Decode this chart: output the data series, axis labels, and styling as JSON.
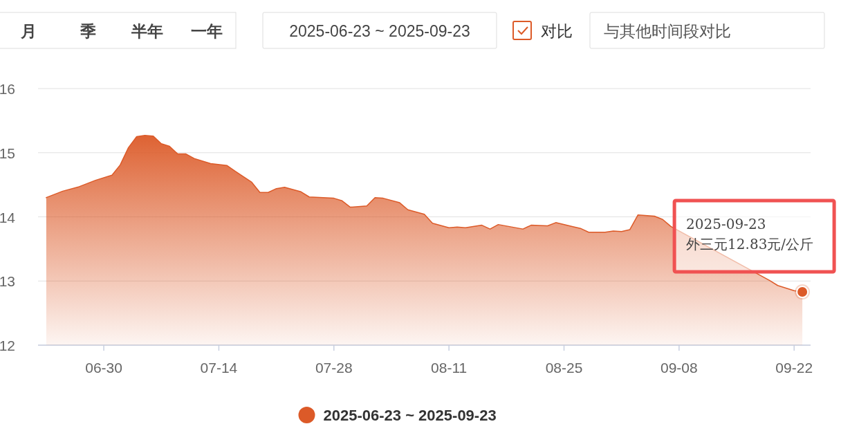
{
  "chart_data": {
    "type": "area",
    "legend": "bottom",
    "grid": "y",
    "line_style": "solid",
    "marker": "none",
    "x": [
      "2025-06-23",
      "2025-06-25",
      "2025-06-27",
      "2025-06-29",
      "2025-07-01",
      "2025-07-02",
      "2025-07-03",
      "2025-07-04",
      "2025-07-05",
      "2025-07-06",
      "2025-07-07",
      "2025-07-08",
      "2025-07-09",
      "2025-07-10",
      "2025-07-11",
      "2025-07-13",
      "2025-07-15",
      "2025-07-16",
      "2025-07-18",
      "2025-07-19",
      "2025-07-20",
      "2025-07-21",
      "2025-07-22",
      "2025-07-24",
      "2025-07-25",
      "2025-07-28",
      "2025-07-29",
      "2025-07-30",
      "2025-08-01",
      "2025-08-02",
      "2025-08-03",
      "2025-08-05",
      "2025-08-06",
      "2025-08-08",
      "2025-08-09",
      "2025-08-11",
      "2025-08-12",
      "2025-08-13",
      "2025-08-15",
      "2025-08-16",
      "2025-08-17",
      "2025-08-20",
      "2025-08-21",
      "2025-08-23",
      "2025-08-24",
      "2025-08-26",
      "2025-08-27",
      "2025-08-28",
      "2025-08-30",
      "2025-08-31",
      "2025-09-01",
      "2025-09-02",
      "2025-09-03",
      "2025-09-05",
      "2025-09-06",
      "2025-09-07",
      "2025-09-19",
      "2025-09-20",
      "2025-09-22",
      "2025-09-23"
    ],
    "series": [
      {
        "name": "2025-06-23 ~ 2025-09-23",
        "color": "#dc5a28",
        "values": [
          14.3,
          14.4,
          14.47,
          14.57,
          14.65,
          14.81,
          15.08,
          15.25,
          15.27,
          15.26,
          15.14,
          15.1,
          14.98,
          14.98,
          14.91,
          14.83,
          14.8,
          14.71,
          14.54,
          14.38,
          14.38,
          14.44,
          14.46,
          14.39,
          14.31,
          14.29,
          14.25,
          14.15,
          14.17,
          14.3,
          14.29,
          14.22,
          14.11,
          14.04,
          13.9,
          13.83,
          13.84,
          13.83,
          13.87,
          13.81,
          13.88,
          13.81,
          13.87,
          13.86,
          13.91,
          13.85,
          13.82,
          13.76,
          13.76,
          13.78,
          13.77,
          13.8,
          14.03,
          14.01,
          13.96,
          13.85,
          13.01,
          12.93,
          12.85,
          12.83
        ]
      }
    ],
    "xlim": [
      "2025-06-22",
      "2025-09-24"
    ],
    "xticks": [
      {
        "value": "2025-06-30",
        "label": "06-30"
      },
      {
        "value": "2025-07-14",
        "label": "07-14"
      },
      {
        "value": "2025-07-28",
        "label": "07-28"
      },
      {
        "value": "2025-08-11",
        "label": "08-11"
      },
      {
        "value": "2025-08-25",
        "label": "08-25"
      },
      {
        "value": "2025-09-08",
        "label": "09-08"
      },
      {
        "value": "2025-09-22",
        "label": "09-22"
      }
    ],
    "ylim": [
      12,
      16
    ],
    "yticks": [
      12,
      13,
      14,
      15,
      16
    ],
    "annotations": [
      "月",
      "季",
      "半年",
      "一年",
      "2025-06-23 ~ 2025-09-23",
      "对比",
      "与其他时间段对比",
      {
        "text": "2025-09-23\n外三元12.83元/公斤",
        "x": "2025-09-23",
        "y": 12.83
      }
    ]
  }
}
